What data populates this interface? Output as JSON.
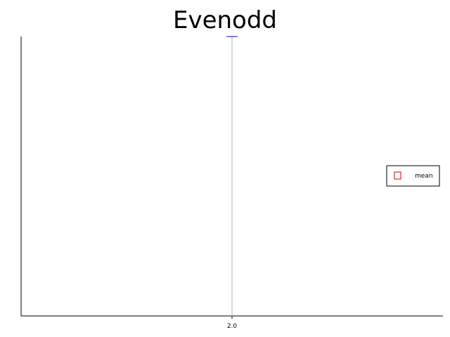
{
  "chart_data": {
    "type": "line",
    "title": "Evenodd",
    "xlabel": "",
    "ylabel": "",
    "x_ticks": [
      "2.0"
    ],
    "series": [
      {
        "name": "mean",
        "x": [
          2.0
        ],
        "y": [
          1.0
        ],
        "marker": "open-square",
        "marker_color": "#cc0000"
      }
    ],
    "error_bar": {
      "x": 2.0,
      "low": 0.0,
      "high": 1.0,
      "color": "#0000cc"
    },
    "xlim": [
      1.0,
      3.0
    ],
    "ylim": [
      0.0,
      1.0
    ],
    "grid": false,
    "legend_position": "right"
  },
  "colors": {
    "axis": "#000000",
    "error_line": "#b0b0b0",
    "error_cap": "#0000cc",
    "marker": "#cc0000"
  }
}
